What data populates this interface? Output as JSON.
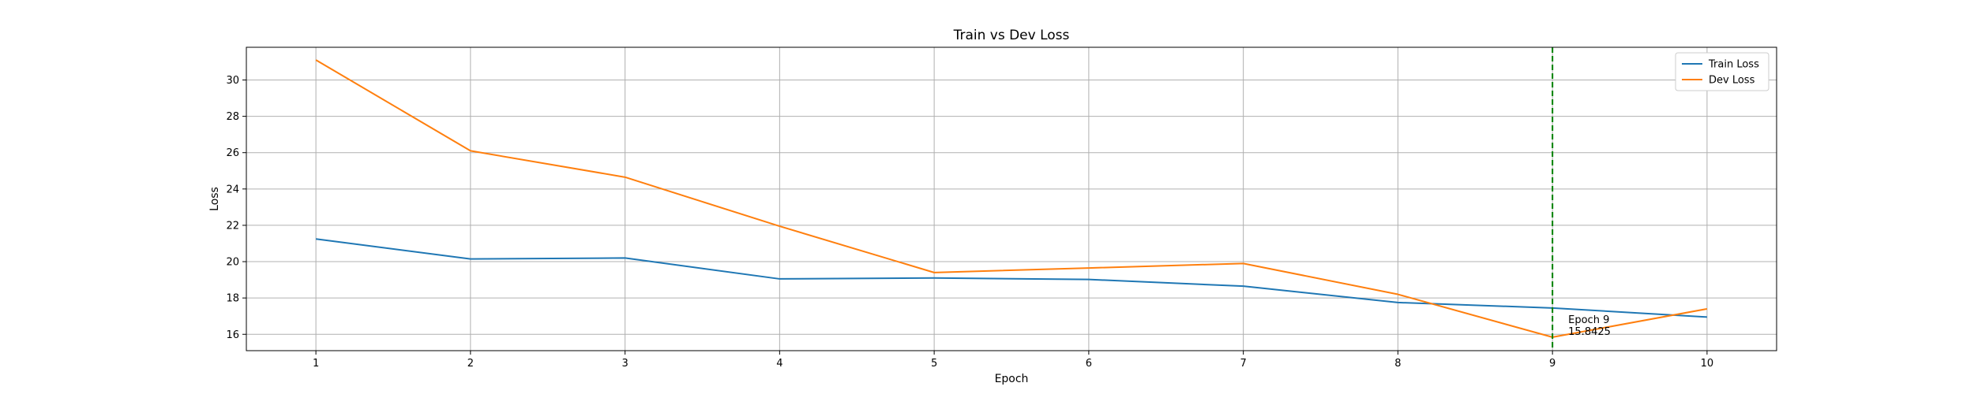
{
  "chart_data": {
    "type": "line",
    "title": "Train vs Dev Loss",
    "xlabel": "Epoch",
    "ylabel": "Loss",
    "x": [
      1,
      2,
      3,
      4,
      5,
      6,
      7,
      8,
      9,
      10
    ],
    "xlim": [
      0.55,
      10.45
    ],
    "ylim": [
      15.1,
      31.8
    ],
    "yticks": [
      16,
      18,
      20,
      22,
      24,
      26,
      28,
      30
    ],
    "grid": true,
    "legend_position": "top-right",
    "series": [
      {
        "name": "Train Loss",
        "color": "#1f77b4",
        "values": [
          21.25,
          20.15,
          20.2,
          19.05,
          19.1,
          19.02,
          18.65,
          17.75,
          17.45,
          16.95
        ]
      },
      {
        "name": "Dev Loss",
        "color": "#ff7f0e",
        "values": [
          31.1,
          26.1,
          24.65,
          21.95,
          19.4,
          19.65,
          19.9,
          18.2,
          15.8425,
          17.4
        ]
      }
    ],
    "marker_line": {
      "x": 9,
      "color": "#008000",
      "style": "dashed",
      "label_line1": "Epoch 9",
      "label_line2": "15.8425"
    }
  }
}
